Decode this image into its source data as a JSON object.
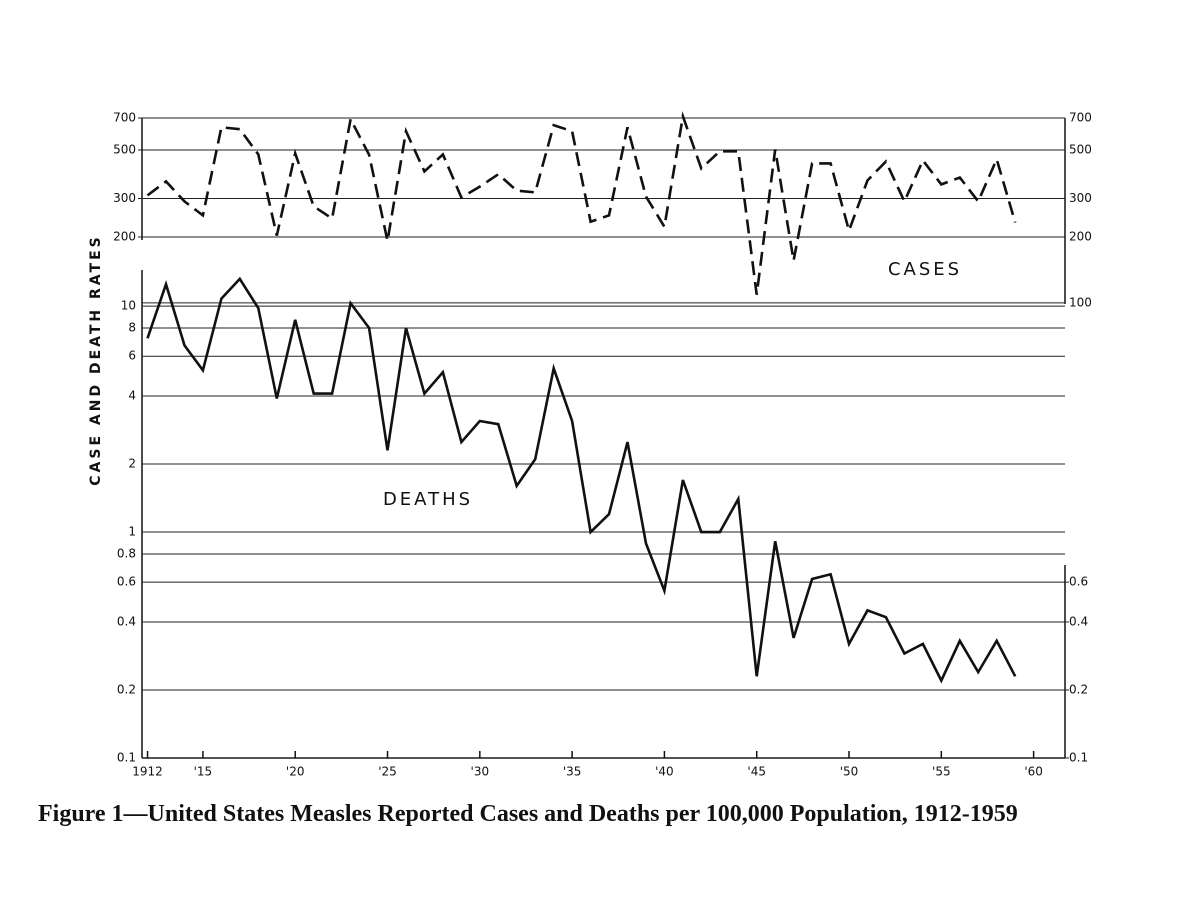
{
  "chart_data": {
    "type": "line",
    "title": "Figure 1—United States Measles Reported Cases and Deaths per 100,000 Population, 1912-1959",
    "y_label": "CASE AND DEATH RATES",
    "log_scale": true,
    "grid": true,
    "x": [
      1912,
      1913,
      1914,
      1915,
      1916,
      1917,
      1918,
      1919,
      1920,
      1921,
      1922,
      1923,
      1924,
      1925,
      1926,
      1927,
      1928,
      1929,
      1930,
      1931,
      1932,
      1933,
      1934,
      1935,
      1936,
      1937,
      1938,
      1939,
      1940,
      1941,
      1942,
      1943,
      1944,
      1945,
      1946,
      1947,
      1948,
      1949,
      1950,
      1951,
      1952,
      1953,
      1954,
      1955,
      1956,
      1957,
      1958,
      1959
    ],
    "xlim": [
      1911.7,
      1961.7
    ],
    "xticks": [
      1912,
      {
        "value": 1915,
        "label": "'15"
      },
      {
        "value": 1920,
        "label": "'20"
      },
      {
        "value": 1925,
        "label": "'25"
      },
      {
        "value": 1930,
        "label": "'30"
      },
      {
        "value": 1935,
        "label": "'35"
      },
      {
        "value": 1940,
        "label": "'40"
      },
      {
        "value": 1945,
        "label": "'45"
      },
      {
        "value": 1950,
        "label": "'50"
      },
      {
        "value": 1955,
        "label": "'55"
      },
      {
        "value": 1960,
        "label": "'60"
      }
    ],
    "ylim": [
      0.1,
      68
    ],
    "yticks": [
      0.1,
      0.2,
      0.4,
      0.6,
      0.8,
      1,
      2,
      4,
      6,
      8,
      10
    ],
    "yticks_right": [
      0.1,
      0.2,
      0.4,
      0.6
    ],
    "y2lim": [
      0.83,
      700
    ],
    "y2ticks": [
      100,
      200,
      300,
      500,
      700
    ],
    "y2ticks_left": [
      200,
      300,
      500,
      700
    ],
    "series": [
      {
        "name": "CASES",
        "axis": "y2",
        "dashed": true,
        "color": "#111111",
        "values": [
          310,
          359,
          291,
          251,
          635,
          622,
          477,
          203,
          482,
          276,
          243,
          691,
          475,
          192,
          609,
          399,
          477,
          303,
          340,
          387,
          326,
          320,
          649,
          609,
          235,
          251,
          635,
          306,
          223,
          713,
          412,
          493,
          493,
          109,
          503,
          156,
          434,
          434,
          214,
          363,
          443,
          291,
          448,
          348,
          374,
          291,
          453,
          233
        ]
      },
      {
        "name": "DEATHS",
        "axis": "y",
        "dashed": false,
        "color": "#111111",
        "values": [
          7.2,
          12.5,
          6.7,
          5.2,
          10.8,
          13.2,
          9.8,
          3.9,
          8.7,
          4.1,
          4.1,
          10.3,
          8.0,
          2.3,
          8.0,
          4.1,
          5.1,
          2.5,
          3.1,
          3.0,
          1.6,
          2.1,
          5.3,
          3.1,
          1.0,
          1.2,
          2.5,
          0.89,
          0.55,
          1.7,
          1.0,
          1.0,
          1.4,
          0.23,
          0.91,
          0.34,
          0.62,
          0.65,
          0.32,
          0.45,
          0.42,
          0.29,
          0.32,
          0.22,
          0.33,
          0.24,
          0.33,
          0.23
        ]
      }
    ]
  }
}
